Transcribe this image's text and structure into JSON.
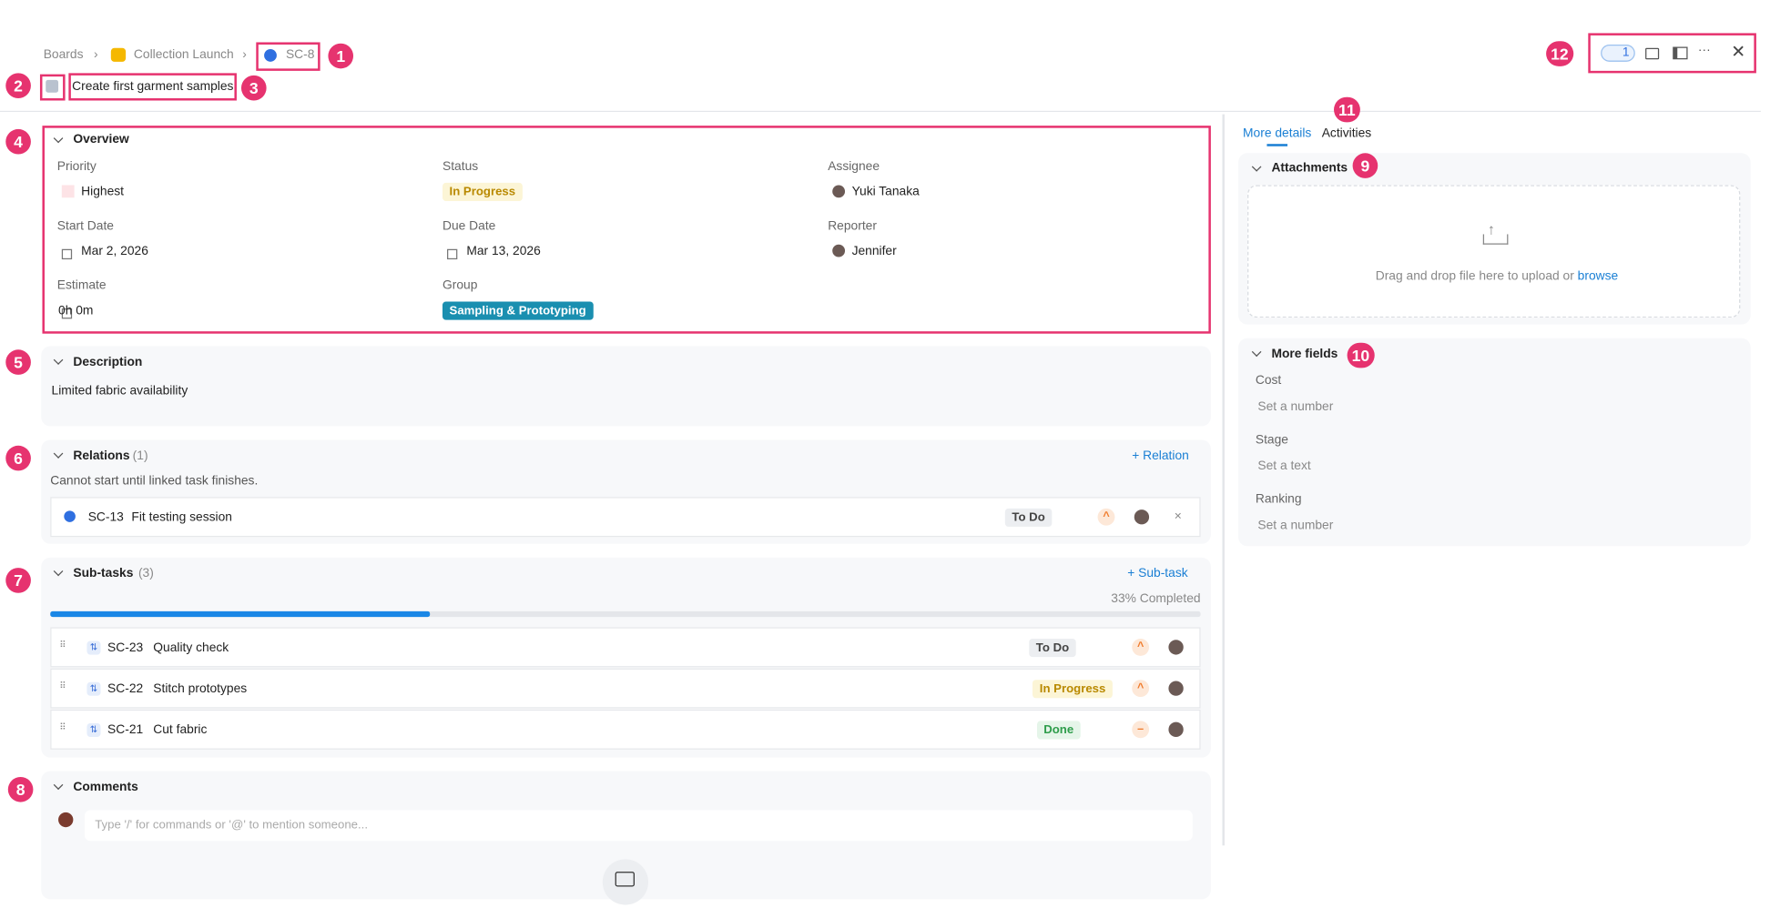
{
  "breadcrumb": [
    "Boards",
    "Collection Launch",
    "SC-8"
  ],
  "badges": [
    "1",
    "2",
    "3",
    "4",
    "5",
    "6",
    "7",
    "8",
    "9",
    "10",
    "11",
    "12"
  ],
  "title": "Create first garment samples",
  "toolbar": {
    "watchers": "1"
  },
  "overview": {
    "heading": "Overview",
    "fields": [
      {
        "label": "Priority",
        "value": "Highest"
      },
      {
        "label": "Status",
        "value": "In Progress"
      },
      {
        "label": "Assignee",
        "value": "Yuki Tanaka"
      },
      {
        "label": "Start Date",
        "value": "Mar 2, 2026"
      },
      {
        "label": "Due Date",
        "value": "Mar 13, 2026"
      },
      {
        "label": "Reporter",
        "value": "Jennifer"
      },
      {
        "label": "Estimate",
        "value": "0h 0m"
      },
      {
        "label": "Group",
        "value": "Sampling & Prototyping"
      }
    ]
  },
  "description": {
    "heading": "Description",
    "text": "Limited fabric availability"
  },
  "relations": {
    "heading": "Relations",
    "count": "(1)",
    "action": "+ Relation",
    "note": "Cannot start until linked task finishes.",
    "items": [
      {
        "key": "SC-13",
        "name": "Fit testing session",
        "status": "To Do"
      }
    ]
  },
  "subtasks": {
    "heading": "Sub-tasks",
    "count": "(3)",
    "action": "+ Sub-task",
    "progress": 33,
    "progress_label": "33% Completed",
    "items": [
      {
        "key": "SC-23",
        "name": "Quality check",
        "status": "To Do"
      },
      {
        "key": "SC-22",
        "name": "Stitch prototypes",
        "status": "In Progress"
      },
      {
        "key": "SC-21",
        "name": "Cut fabric",
        "status": "Done"
      }
    ]
  },
  "comments": {
    "heading": "Comments",
    "placeholder": "Type '/' for commands or '@' to mention someone..."
  },
  "side": {
    "tabs": [
      "More details",
      "Activities"
    ],
    "attachments": {
      "heading": "Attachments",
      "drop_text": "Drag and drop file here to upload or",
      "browse": "browse"
    },
    "more_fields": {
      "heading": "More fields",
      "fields": [
        {
          "label": "Cost",
          "placeholder": "Set a number"
        },
        {
          "label": "Stage",
          "placeholder": "Set a text"
        },
        {
          "label": "Ranking",
          "placeholder": "Set a number"
        }
      ]
    }
  }
}
